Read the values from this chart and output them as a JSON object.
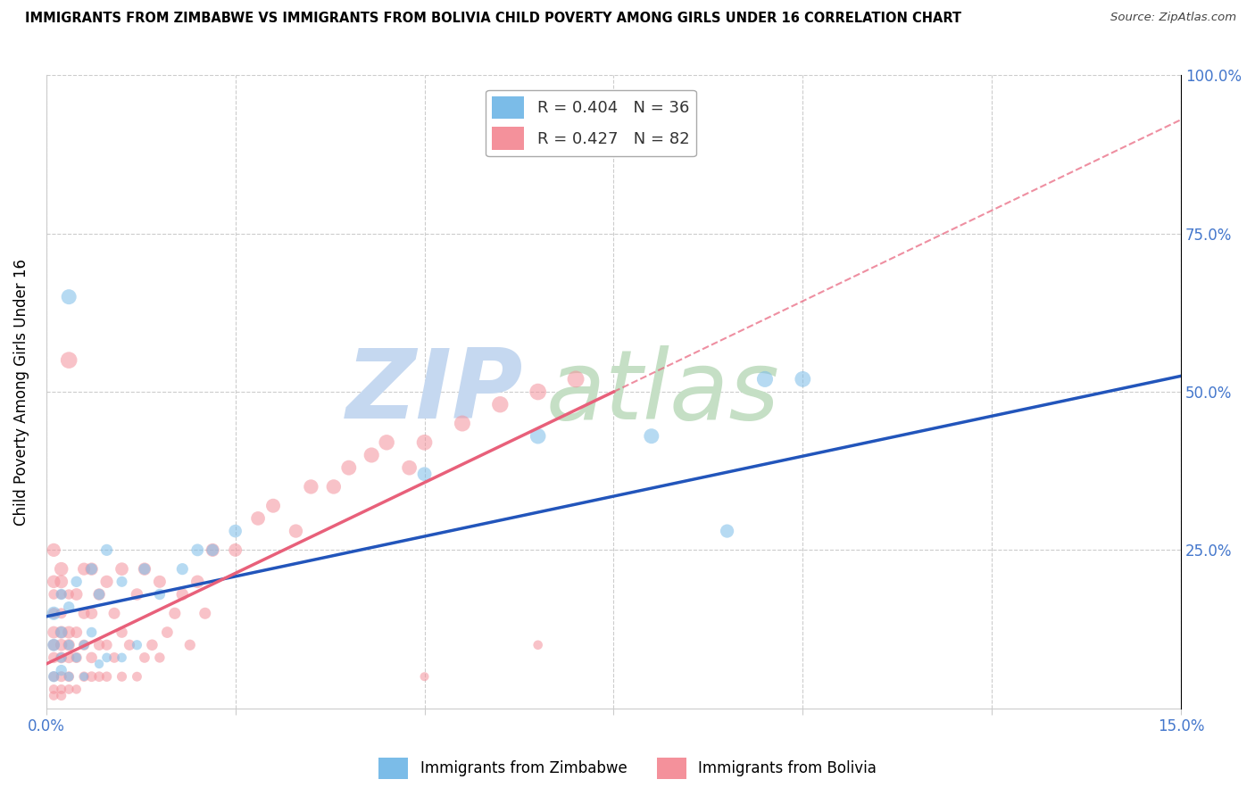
{
  "title": "IMMIGRANTS FROM ZIMBABWE VS IMMIGRANTS FROM BOLIVIA CHILD POVERTY AMONG GIRLS UNDER 16 CORRELATION CHART",
  "source": "Source: ZipAtlas.com",
  "ylabel": "Child Poverty Among Girls Under 16",
  "xlim": [
    0.0,
    0.15
  ],
  "ylim": [
    0.0,
    1.0
  ],
  "xticks": [
    0.0,
    0.025,
    0.05,
    0.075,
    0.1,
    0.125,
    0.15
  ],
  "yticks": [
    0.0,
    0.25,
    0.5,
    0.75,
    1.0
  ],
  "ytick_labels": [
    "",
    "25.0%",
    "50.0%",
    "75.0%",
    "100.0%"
  ],
  "zimbabwe_color": "#7bbce8",
  "bolivia_color": "#f4919b",
  "zimbabwe_line_color": "#2255bb",
  "bolivia_line_color": "#e8607a",
  "zimbabwe_R": 0.404,
  "zimbabwe_N": 36,
  "bolivia_R": 0.427,
  "bolivia_N": 82,
  "tick_color": "#4477cc",
  "grid_color": "#cccccc",
  "watermark_zip_color": "#c5d8f0",
  "watermark_atlas_color": "#c5dfc5",
  "zimbabwe_scatter_x": [
    0.001,
    0.001,
    0.001,
    0.002,
    0.002,
    0.002,
    0.002,
    0.003,
    0.003,
    0.003,
    0.003,
    0.004,
    0.004,
    0.005,
    0.005,
    0.006,
    0.006,
    0.007,
    0.007,
    0.008,
    0.008,
    0.01,
    0.01,
    0.012,
    0.013,
    0.015,
    0.018,
    0.02,
    0.022,
    0.025,
    0.05,
    0.065,
    0.08,
    0.09,
    0.095,
    0.1
  ],
  "zimbabwe_scatter_y": [
    0.05,
    0.1,
    0.15,
    0.06,
    0.12,
    0.08,
    0.18,
    0.05,
    0.1,
    0.16,
    0.65,
    0.08,
    0.2,
    0.05,
    0.1,
    0.12,
    0.22,
    0.07,
    0.18,
    0.08,
    0.25,
    0.08,
    0.2,
    0.1,
    0.22,
    0.18,
    0.22,
    0.25,
    0.25,
    0.28,
    0.37,
    0.43,
    0.43,
    0.28,
    0.52,
    0.52
  ],
  "zimbabwe_scatter_size": [
    80,
    100,
    120,
    80,
    90,
    70,
    80,
    60,
    70,
    80,
    150,
    60,
    80,
    50,
    65,
    70,
    85,
    55,
    80,
    60,
    90,
    60,
    75,
    65,
    85,
    80,
    90,
    100,
    95,
    110,
    130,
    160,
    150,
    120,
    170,
    165
  ],
  "bolivia_scatter_x": [
    0.001,
    0.001,
    0.001,
    0.001,
    0.001,
    0.001,
    0.001,
    0.001,
    0.001,
    0.001,
    0.002,
    0.002,
    0.002,
    0.002,
    0.002,
    0.002,
    0.002,
    0.002,
    0.002,
    0.002,
    0.003,
    0.003,
    0.003,
    0.003,
    0.003,
    0.003,
    0.003,
    0.004,
    0.004,
    0.004,
    0.004,
    0.005,
    0.005,
    0.005,
    0.005,
    0.006,
    0.006,
    0.006,
    0.006,
    0.007,
    0.007,
    0.007,
    0.008,
    0.008,
    0.008,
    0.009,
    0.009,
    0.01,
    0.01,
    0.01,
    0.011,
    0.012,
    0.012,
    0.013,
    0.013,
    0.014,
    0.015,
    0.015,
    0.016,
    0.017,
    0.018,
    0.019,
    0.02,
    0.021,
    0.022,
    0.025,
    0.028,
    0.03,
    0.033,
    0.035,
    0.038,
    0.04,
    0.043,
    0.045,
    0.048,
    0.05,
    0.055,
    0.06,
    0.065,
    0.07,
    0.05,
    0.065
  ],
  "bolivia_scatter_y": [
    0.02,
    0.05,
    0.08,
    0.1,
    0.12,
    0.15,
    0.18,
    0.2,
    0.25,
    0.03,
    0.02,
    0.05,
    0.08,
    0.1,
    0.12,
    0.15,
    0.18,
    0.2,
    0.22,
    0.03,
    0.03,
    0.05,
    0.08,
    0.1,
    0.12,
    0.55,
    0.18,
    0.03,
    0.08,
    0.12,
    0.18,
    0.05,
    0.1,
    0.15,
    0.22,
    0.05,
    0.08,
    0.15,
    0.22,
    0.05,
    0.1,
    0.18,
    0.05,
    0.1,
    0.2,
    0.08,
    0.15,
    0.05,
    0.12,
    0.22,
    0.1,
    0.05,
    0.18,
    0.08,
    0.22,
    0.1,
    0.08,
    0.2,
    0.12,
    0.15,
    0.18,
    0.1,
    0.2,
    0.15,
    0.25,
    0.25,
    0.3,
    0.32,
    0.28,
    0.35,
    0.35,
    0.38,
    0.4,
    0.42,
    0.38,
    0.42,
    0.45,
    0.48,
    0.5,
    0.52,
    0.05,
    0.1
  ],
  "bolivia_scatter_size": [
    60,
    70,
    80,
    90,
    100,
    80,
    70,
    110,
    120,
    60,
    65,
    75,
    85,
    95,
    105,
    75,
    65,
    115,
    125,
    62,
    62,
    72,
    82,
    92,
    102,
    180,
    68,
    58,
    78,
    88,
    98,
    68,
    78,
    88,
    105,
    72,
    82,
    92,
    108,
    70,
    80,
    95,
    68,
    78,
    105,
    72,
    88,
    65,
    82,
    112,
    78,
    62,
    95,
    72,
    108,
    82,
    68,
    102,
    85,
    90,
    95,
    78,
    110,
    88,
    118,
    115,
    128,
    132,
    122,
    138,
    140,
    148,
    152,
    158,
    145,
    162,
    168,
    175,
    180,
    185,
    52,
    58
  ],
  "zim_trendline_x0": 0.0,
  "zim_trendline_y0": 0.145,
  "zim_trendline_x1": 0.15,
  "zim_trendline_y1": 0.525,
  "bol_trendline_x0": 0.0,
  "bol_trendline_y0": 0.07,
  "bol_trendline_x1_solid": 0.075,
  "bol_trendline_y1_solid": 0.5,
  "bol_trendline_x1_dash": 0.15,
  "bol_trendline_y1_dash": 0.93
}
